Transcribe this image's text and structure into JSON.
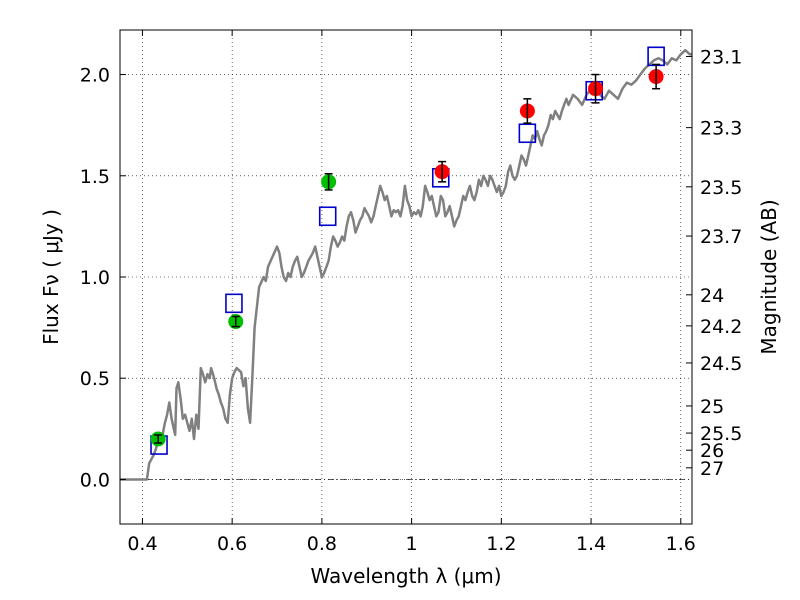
{
  "chart_data": {
    "type": "scatter",
    "title": "",
    "xlabel": "Wavelength  λ (μm)",
    "ylabel": "Flux  Fν  ( μJy )",
    "y2label": "Magnitude (AB)",
    "xlim": [
      0.35,
      1.625
    ],
    "ylim": [
      -0.22,
      2.22
    ],
    "grid": true,
    "x_ticks": [
      0.4,
      0.6,
      0.8,
      1.0,
      1.2,
      1.4,
      1.6
    ],
    "x_tick_labels": [
      "0.4",
      "0.6",
      "0.8",
      "1",
      "1.2",
      "1.4",
      "1.6"
    ],
    "y_ticks": [
      0.0,
      0.5,
      1.0,
      1.5,
      2.0
    ],
    "y_tick_labels": [
      "0.0",
      "0.5",
      "1.0",
      "1.5",
      "2.0"
    ],
    "mag_ticks": [
      23.1,
      23.3,
      23.5,
      23.7,
      24,
      24.2,
      24.5,
      25,
      25.5,
      26,
      27
    ],
    "mag_tick_labels": [
      "23.1",
      "23.3",
      "23.5",
      "23.7",
      "24",
      "24.2",
      "24.5",
      "25",
      "25.5",
      "26",
      "27"
    ],
    "zero_line": true,
    "series": [
      {
        "kind": "line",
        "color": "#808080",
        "x": [
          0.35,
          0.41,
          0.415,
          0.42,
          0.425,
          0.43,
          0.435,
          0.44,
          0.445,
          0.45,
          0.455,
          0.46,
          0.465,
          0.47,
          0.473,
          0.476,
          0.48,
          0.485,
          0.49,
          0.495,
          0.5,
          0.505,
          0.51,
          0.515,
          0.52,
          0.525,
          0.53,
          0.535,
          0.54,
          0.545,
          0.55,
          0.553,
          0.556,
          0.56,
          0.565,
          0.57,
          0.575,
          0.58,
          0.585,
          0.59,
          0.595,
          0.6,
          0.605,
          0.61,
          0.615,
          0.62,
          0.625,
          0.63,
          0.635,
          0.64,
          0.645,
          0.65,
          0.66,
          0.67,
          0.675,
          0.68,
          0.69,
          0.7,
          0.705,
          0.71,
          0.715,
          0.72,
          0.725,
          0.73,
          0.735,
          0.74,
          0.745,
          0.75,
          0.755,
          0.76,
          0.765,
          0.77,
          0.775,
          0.78,
          0.785,
          0.79,
          0.795,
          0.8,
          0.805,
          0.81,
          0.815,
          0.82,
          0.825,
          0.83,
          0.835,
          0.84,
          0.845,
          0.85,
          0.855,
          0.86,
          0.865,
          0.87,
          0.875,
          0.88,
          0.885,
          0.89,
          0.895,
          0.9,
          0.905,
          0.91,
          0.915,
          0.92,
          0.925,
          0.93,
          0.935,
          0.94,
          0.945,
          0.95,
          0.955,
          0.96,
          0.965,
          0.97,
          0.975,
          0.98,
          0.985,
          0.99,
          0.995,
          1.0,
          1.005,
          1.01,
          1.015,
          1.02,
          1.025,
          1.03,
          1.035,
          1.04,
          1.045,
          1.05,
          1.055,
          1.06,
          1.065,
          1.07,
          1.075,
          1.08,
          1.085,
          1.09,
          1.095,
          1.1,
          1.105,
          1.11,
          1.115,
          1.12,
          1.125,
          1.13,
          1.135,
          1.14,
          1.145,
          1.15,
          1.155,
          1.16,
          1.165,
          1.17,
          1.175,
          1.18,
          1.185,
          1.19,
          1.195,
          1.2,
          1.205,
          1.21,
          1.215,
          1.22,
          1.225,
          1.23,
          1.235,
          1.24,
          1.245,
          1.25,
          1.255,
          1.26,
          1.265,
          1.27,
          1.275,
          1.28,
          1.285,
          1.29,
          1.295,
          1.3,
          1.305,
          1.31,
          1.315,
          1.32,
          1.325,
          1.33,
          1.335,
          1.34,
          1.345,
          1.35,
          1.36,
          1.37,
          1.38,
          1.39,
          1.4,
          1.41,
          1.42,
          1.43,
          1.44,
          1.45,
          1.46,
          1.47,
          1.48,
          1.49,
          1.5,
          1.51,
          1.52,
          1.53,
          1.54,
          1.55,
          1.56,
          1.57,
          1.58,
          1.59,
          1.6,
          1.61,
          1.62,
          1.625
        ],
        "y": [
          0.0,
          0.0,
          0.08,
          0.1,
          0.12,
          0.15,
          0.2,
          0.18,
          0.22,
          0.28,
          0.32,
          0.38,
          0.3,
          0.25,
          0.22,
          0.45,
          0.48,
          0.4,
          0.3,
          0.32,
          0.28,
          0.24,
          0.3,
          0.2,
          0.32,
          0.25,
          0.55,
          0.52,
          0.48,
          0.52,
          0.5,
          0.55,
          0.53,
          0.5,
          0.45,
          0.42,
          0.38,
          0.35,
          0.3,
          0.28,
          0.42,
          0.5,
          0.53,
          0.55,
          0.54,
          0.53,
          0.46,
          0.5,
          0.35,
          0.28,
          0.5,
          0.75,
          0.95,
          1.0,
          0.98,
          1.05,
          1.1,
          1.15,
          1.12,
          1.05,
          1.0,
          0.98,
          1.02,
          1.0,
          1.05,
          1.08,
          1.1,
          1.05,
          1.0,
          1.02,
          1.05,
          1.08,
          1.1,
          1.12,
          1.15,
          1.1,
          1.05,
          1.0,
          1.02,
          1.05,
          1.08,
          1.15,
          1.2,
          1.18,
          1.15,
          1.17,
          1.2,
          1.18,
          1.25,
          1.3,
          1.32,
          1.28,
          1.22,
          1.25,
          1.28,
          1.3,
          1.34,
          1.32,
          1.3,
          1.27,
          1.3,
          1.35,
          1.4,
          1.45,
          1.42,
          1.38,
          1.4,
          1.35,
          1.3,
          1.33,
          1.32,
          1.33,
          1.3,
          1.35,
          1.45,
          1.38,
          1.35,
          1.3,
          1.32,
          1.31,
          1.33,
          1.3,
          1.35,
          1.45,
          1.42,
          1.38,
          1.4,
          1.35,
          1.3,
          1.32,
          1.4,
          1.38,
          1.3,
          1.32,
          1.35,
          1.3,
          1.25,
          1.28,
          1.3,
          1.35,
          1.4,
          1.38,
          1.42,
          1.45,
          1.4,
          1.38,
          1.42,
          1.48,
          1.45,
          1.5,
          1.48,
          1.45,
          1.5,
          1.48,
          1.45,
          1.42,
          1.45,
          1.4,
          1.42,
          1.45,
          1.52,
          1.55,
          1.5,
          1.48,
          1.5,
          1.55,
          1.6,
          1.58,
          1.55,
          1.6,
          1.65,
          1.7,
          1.68,
          1.72,
          1.68,
          1.65,
          1.7,
          1.72,
          1.75,
          1.8,
          1.78,
          1.82,
          1.8,
          1.78,
          1.82,
          1.85,
          1.88,
          1.85,
          1.9,
          1.88,
          1.85,
          1.9,
          1.93,
          1.95,
          1.9,
          1.88,
          1.92,
          1.9,
          1.88,
          1.93,
          1.96,
          1.95,
          1.97,
          2.0,
          2.03,
          2.05,
          2.07,
          2.08,
          2.07,
          2.05,
          2.08,
          2.07,
          2.1,
          2.12,
          2.1,
          2.1
        ],
        "name": ""
      }
    ],
    "points": {
      "green": {
        "color": "#00bf00",
        "x": [
          0.435,
          0.608,
          0.815
        ],
        "y": [
          0.2,
          0.78,
          1.47
        ],
        "err": [
          0.02,
          0.025,
          0.04
        ]
      },
      "red": {
        "color": "#ff0000",
        "x": [
          1.068,
          1.258,
          1.41,
          1.545
        ],
        "y": [
          1.52,
          1.82,
          1.93,
          1.99
        ],
        "err": [
          0.05,
          0.06,
          0.07,
          0.06
        ]
      },
      "blue_squares": {
        "color": "#0000cc",
        "x": [
          0.437,
          0.604,
          0.813,
          1.065,
          1.258,
          1.407,
          1.545
        ],
        "y": [
          0.17,
          0.87,
          1.3,
          1.49,
          1.71,
          1.92,
          2.09
        ]
      }
    }
  }
}
